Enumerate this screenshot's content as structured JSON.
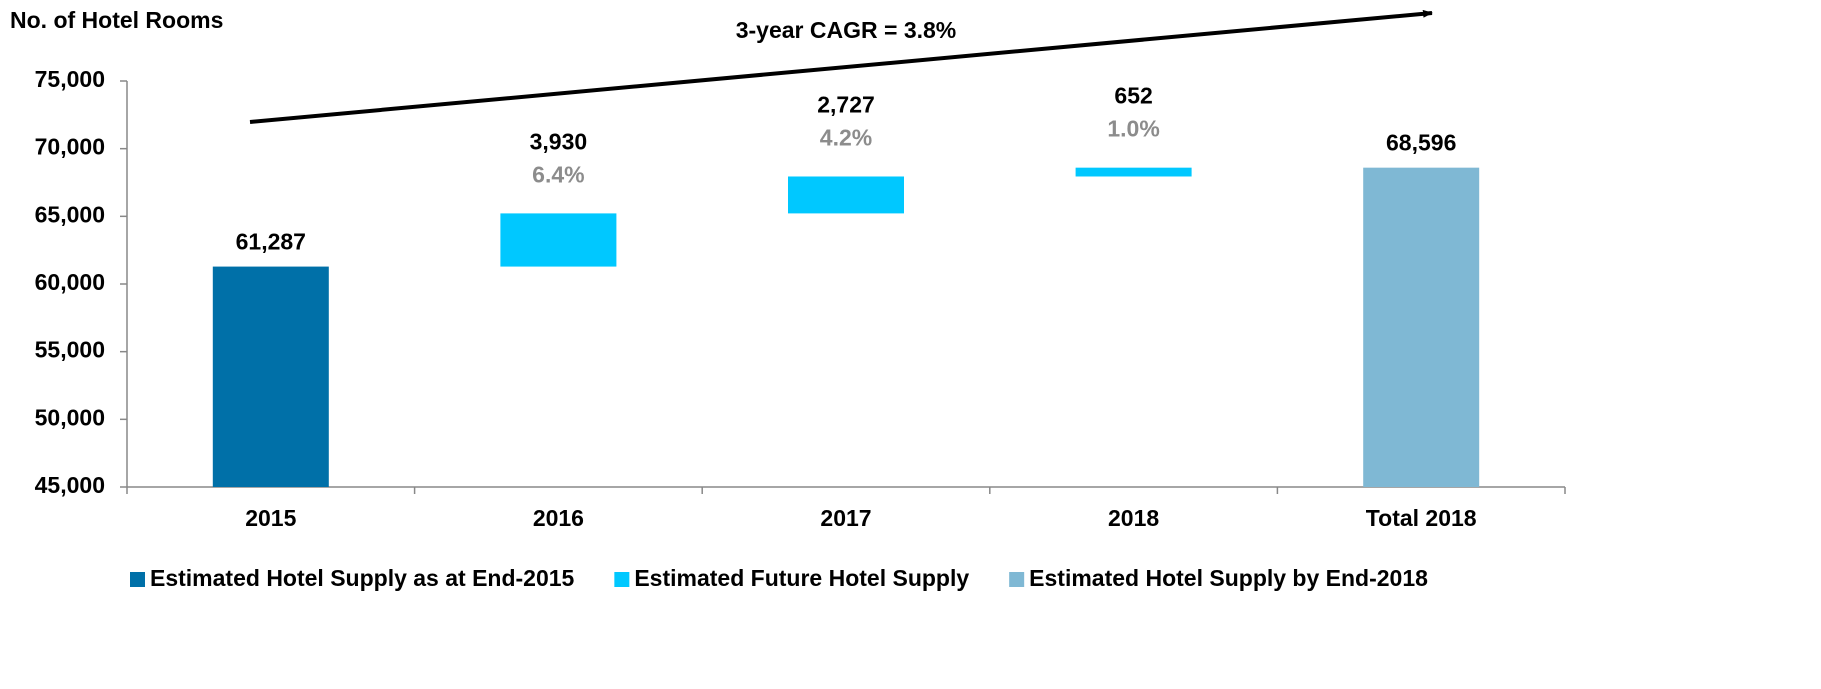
{
  "chart_data": {
    "type": "waterfall",
    "y_axis_title": "No. of Hotel Rooms",
    "annotation": "3-year CAGR = 3.8%",
    "categories": [
      "2015",
      "2016",
      "2017",
      "2018",
      "Total 2018"
    ],
    "series": [
      {
        "name": "Estimated Hotel Supply as at End-2015",
        "color": "#0070a8",
        "role": "base",
        "values": [
          61287,
          null,
          null,
          null,
          null
        ],
        "value_labels": [
          "61,287",
          null,
          null,
          null,
          null
        ]
      },
      {
        "name": "Estimated Future Hotel Supply",
        "color": "#00c8ff",
        "role": "increment",
        "values": [
          null,
          3930,
          2727,
          652,
          null
        ],
        "value_labels": [
          null,
          "3,930",
          "2,727",
          "652",
          null
        ],
        "growth_labels": [
          null,
          "6.4%",
          "4.2%",
          "1.0%",
          null
        ]
      },
      {
        "name": "Estimated Hotel Supply by End-2018",
        "color": "#7fb8d4",
        "role": "total",
        "values": [
          null,
          null,
          null,
          null,
          68596
        ],
        "value_labels": [
          null,
          null,
          null,
          null,
          "68,596"
        ]
      }
    ],
    "ylim": [
      45000,
      75000
    ],
    "yticks": [
      {
        "value": 45000,
        "label": "45,000"
      },
      {
        "value": 50000,
        "label": "50,000"
      },
      {
        "value": 55000,
        "label": "55,000"
      },
      {
        "value": 60000,
        "label": "60,000"
      },
      {
        "value": 65000,
        "label": "65,000"
      },
      {
        "value": 70000,
        "label": "70,000"
      },
      {
        "value": 75000,
        "label": "75,000"
      }
    ],
    "legend": "bottom",
    "grid": false
  }
}
